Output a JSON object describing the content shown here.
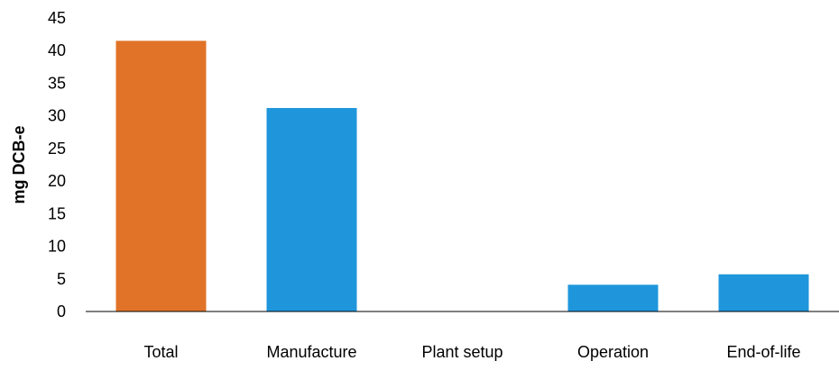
{
  "chart_data": {
    "type": "bar",
    "title": "",
    "xlabel": "",
    "ylabel": "mg DCB-e",
    "categories": [
      "Total",
      "Manufacture",
      "Plant setup",
      "Operation",
      "End-of-life"
    ],
    "values": [
      41.5,
      31.2,
      0,
      4.1,
      5.7
    ],
    "bar_colors": [
      "#E07328",
      "#1F96DC",
      "#1F96DC",
      "#1F96DC",
      "#1F96DC"
    ],
    "ylim": [
      0,
      45
    ],
    "yticks": [
      0,
      5,
      10,
      15,
      20,
      25,
      30,
      35,
      40,
      45
    ],
    "grid": false,
    "legend": "none"
  }
}
